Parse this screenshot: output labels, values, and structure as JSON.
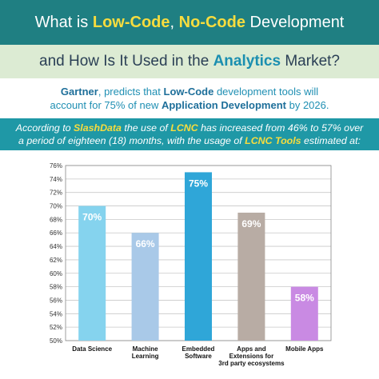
{
  "header": {
    "line1": [
      {
        "text": "What is ",
        "hl": false
      },
      {
        "text": "Low-Code",
        "hl": true
      },
      {
        "text": ", ",
        "hl": false
      },
      {
        "text": "No-Code",
        "hl": true
      },
      {
        "text": " Development",
        "hl": false
      }
    ],
    "line2": [
      {
        "text": "and How Is It Used in the ",
        "hl": false
      },
      {
        "text": "Analytics",
        "hl": true
      },
      {
        "text": " Market?",
        "hl": false
      }
    ]
  },
  "gartner": {
    "line1": [
      {
        "text": "Gartner",
        "hl": true
      },
      {
        "text": ", predicts that ",
        "hl": false
      },
      {
        "text": "Low-Code",
        "hl": true
      },
      {
        "text": " development tools will",
        "hl": false
      }
    ],
    "line2": [
      {
        "text": "account for 75% of new ",
        "hl": false
      },
      {
        "text": "Application Development",
        "hl": true
      },
      {
        "text": " by 2026.",
        "hl": false
      }
    ]
  },
  "slashdata": {
    "line1": [
      {
        "text": "According to ",
        "hl": false
      },
      {
        "text": "SlashData",
        "hl": true
      },
      {
        "text": " the use of ",
        "hl": false
      },
      {
        "text": "LCNC",
        "hl": true
      },
      {
        "text": " has increased from 46% to 57% over",
        "hl": false
      }
    ],
    "line2": [
      {
        "text": "a period of eighteen (18) months, with the usage of ",
        "hl": false
      },
      {
        "text": "LCNC Tools",
        "hl": true
      },
      {
        "text": " estimated at:",
        "hl": false
      }
    ]
  },
  "chart_data": {
    "type": "bar",
    "categories": [
      [
        "Data Science"
      ],
      [
        "Machine",
        "Learning"
      ],
      [
        "Embedded",
        "Software"
      ],
      [
        "Apps and",
        "Extensions for",
        "3rd party ecosystems"
      ],
      [
        "Mobile Apps"
      ]
    ],
    "values": [
      70,
      66,
      75,
      69,
      58
    ],
    "data_labels": [
      "70%",
      "66%",
      "75%",
      "69%",
      "58%"
    ],
    "colors": [
      "#85d3ee",
      "#a9c9e8",
      "#2fa6d8",
      "#b8aca4",
      "#c98ae3"
    ],
    "ylim": [
      50,
      76
    ],
    "yticks": [
      50,
      52,
      54,
      56,
      58,
      60,
      62,
      64,
      66,
      68,
      70,
      72,
      74,
      76
    ],
    "ytick_suffix": "%",
    "grid": true,
    "xlabel": "",
    "ylabel": "",
    "title": ""
  }
}
